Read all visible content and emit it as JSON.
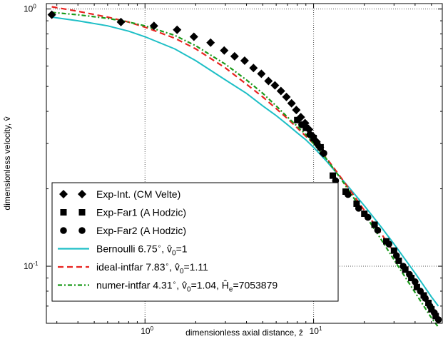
{
  "chart_data": {
    "type": "line",
    "xlabel": "dimensionless axial distance, ẑ",
    "ylabel": "dimensionless velocity, v̂",
    "x_scale": "log",
    "y_scale": "log",
    "xlim": [
      0.26,
      58
    ],
    "ylim": [
      0.06,
      1.05
    ],
    "grid": "major, dotted",
    "x_ticks": [
      {
        "value": 1,
        "base": "10",
        "exp": "0"
      },
      {
        "value": 10,
        "base": "10",
        "exp": "1"
      }
    ],
    "y_ticks": [
      {
        "value": 0.1,
        "base": "10",
        "exp": "-1"
      },
      {
        "value": 1,
        "base": "10",
        "exp": "0"
      }
    ],
    "legend_position": "lower-left",
    "series": [
      {
        "name": "Exp-Int. (CM Velte)",
        "kind": "marker",
        "marker": "diamond",
        "color": "#000000",
        "legend_text": "Exp-Int. (CM Velte)",
        "x": [
          0.28,
          0.72,
          1.13,
          1.55,
          1.95,
          2.45,
          2.95,
          3.4,
          3.9,
          4.4,
          4.9,
          5.4,
          5.9,
          6.4,
          6.9,
          7.4,
          7.9,
          8.4,
          8.9,
          9.4,
          9.9,
          10.4,
          10.9,
          11.4
        ],
        "y": [
          0.95,
          0.89,
          0.86,
          0.83,
          0.78,
          0.74,
          0.69,
          0.655,
          0.63,
          0.59,
          0.56,
          0.525,
          0.505,
          0.48,
          0.455,
          0.43,
          0.405,
          0.38,
          0.36,
          0.34,
          0.32,
          0.305,
          0.29,
          0.275
        ]
      },
      {
        "name": "Exp-Far1 (A Hodzic)",
        "kind": "marker",
        "marker": "square",
        "color": "#000000",
        "legend_text": "Exp-Far1 (A Hodzic)",
        "x": [
          8.0,
          9.0,
          10.0,
          11.0,
          13.0,
          15.5,
          18.0,
          20.0,
          23.0,
          27.0,
          30.0,
          32.0,
          35.0,
          38.0,
          41.0,
          45.0,
          48.0,
          50.0,
          53.0
        ],
        "y": [
          0.37,
          0.345,
          0.315,
          0.29,
          0.225,
          0.195,
          0.175,
          0.16,
          0.145,
          0.125,
          0.115,
          0.105,
          0.097,
          0.09,
          0.083,
          0.077,
          0.072,
          0.068,
          0.064
        ]
      },
      {
        "name": "Exp-Far2 (A Hodzic)",
        "kind": "marker",
        "marker": "circle",
        "color": "#000000",
        "legend_text": "Exp-Far2 (A Hodzic)",
        "x": [
          8.5,
          9.5,
          10.5,
          11.5,
          13.5,
          16.0,
          18.5,
          21.0,
          24.0,
          28.0,
          31.0,
          34.0,
          37.0,
          40.0,
          43.0,
          46.0,
          49.0,
          52.0,
          55.0
        ],
        "y": [
          0.355,
          0.325,
          0.3,
          0.275,
          0.215,
          0.19,
          0.168,
          0.155,
          0.138,
          0.122,
          0.11,
          0.1,
          0.093,
          0.087,
          0.08,
          0.075,
          0.07,
          0.066,
          0.062
        ]
      },
      {
        "name": "Bernoulli",
        "kind": "line",
        "dash": "solid",
        "color": "#1ebfc6",
        "legend_text": "Bernoulli 6.75",
        "legend_tail": ", v̂",
        "legend_sub": "0",
        "legend_tail2": "=1",
        "x": [
          0.28,
          0.4,
          0.6,
          0.8,
          1.0,
          1.5,
          2.0,
          3.0,
          4.0,
          5.0,
          6.0,
          7.0,
          8.0,
          9.0,
          10.0,
          12.0,
          15.0,
          20.0,
          25.0,
          30.0,
          40.0,
          50.0,
          55.0
        ],
        "y": [
          0.93,
          0.9,
          0.86,
          0.82,
          0.78,
          0.7,
          0.63,
          0.53,
          0.47,
          0.42,
          0.385,
          0.355,
          0.33,
          0.31,
          0.29,
          0.255,
          0.215,
          0.172,
          0.143,
          0.122,
          0.094,
          0.076,
          0.07
        ]
      },
      {
        "name": "ideal-intfar",
        "kind": "line",
        "dash": "dashed",
        "color": "#e8221f",
        "legend_text": "ideal-intfar 7.83",
        "legend_tail": ", v̂",
        "legend_sub": "0",
        "legend_tail2": "=1.11",
        "x": [
          0.28,
          0.4,
          0.6,
          0.8,
          1.0,
          1.5,
          2.0,
          3.0,
          4.0,
          5.0,
          6.0,
          7.0,
          8.0,
          9.0,
          10.0,
          12.0,
          15.0,
          20.0,
          25.0,
          30.0,
          40.0,
          50.0,
          55.0
        ],
        "y": [
          1.02,
          0.98,
          0.93,
          0.89,
          0.85,
          0.77,
          0.7,
          0.59,
          0.51,
          0.455,
          0.41,
          0.375,
          0.345,
          0.32,
          0.3,
          0.262,
          0.215,
          0.165,
          0.135,
          0.113,
          0.086,
          0.069,
          0.063
        ]
      },
      {
        "name": "numer-intfar",
        "kind": "line",
        "dash": "dashdot",
        "color": "#1a9a1a",
        "legend_text": "numer-intfar 4.31",
        "legend_tail": ", v̂",
        "legend_sub": "0",
        "legend_tail2": "=1.04, Ĥ",
        "legend_sub2": "e",
        "legend_tail3": "=7053879",
        "x": [
          0.28,
          0.4,
          0.6,
          0.8,
          1.0,
          1.5,
          2.0,
          3.0,
          4.0,
          5.0,
          6.0,
          7.0,
          8.0,
          9.0,
          10.0,
          12.0,
          15.0,
          20.0,
          25.0,
          30.0,
          40.0,
          50.0,
          55.0
        ],
        "y": [
          0.97,
          0.95,
          0.92,
          0.89,
          0.86,
          0.79,
          0.72,
          0.61,
          0.53,
          0.47,
          0.42,
          0.38,
          0.35,
          0.325,
          0.3,
          0.26,
          0.212,
          0.16,
          0.128,
          0.106,
          0.079,
          0.063,
          0.058
        ]
      }
    ]
  }
}
